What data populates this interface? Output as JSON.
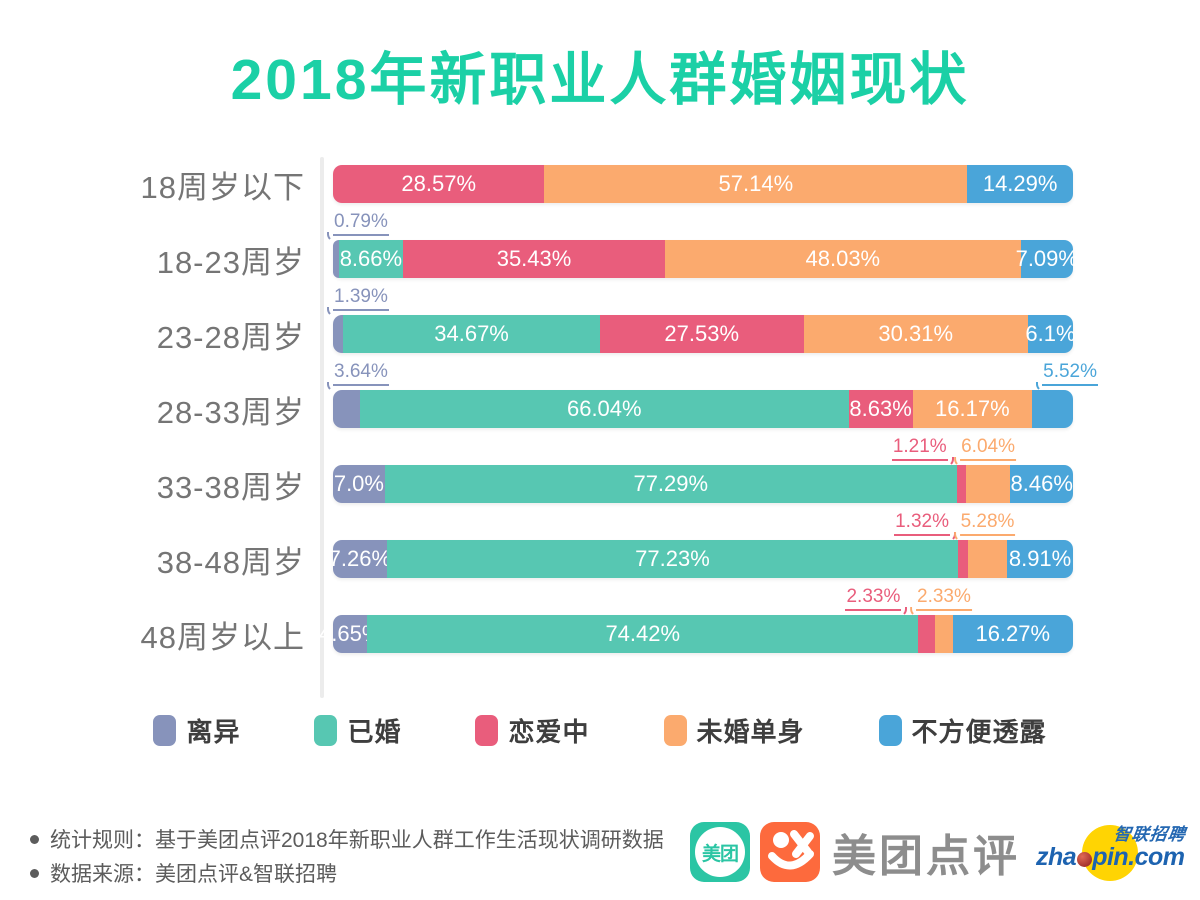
{
  "title": "2018年新职业人群婚姻现状",
  "chart_data": {
    "type": "bar",
    "stacked": true,
    "horizontal": true,
    "unit": "%",
    "xlim": [
      0,
      100
    ],
    "grid": false,
    "legend_position": "bottom",
    "categories": [
      "18周岁以下",
      "18-23周岁",
      "23-28周岁",
      "28-33周岁",
      "33-38周岁",
      "38-48周岁",
      "48周岁以上"
    ],
    "series": [
      {
        "name": "离异",
        "color": "#8793bb",
        "values": [
          0,
          0.79,
          1.39,
          3.64,
          7.0,
          7.26,
          4.65
        ]
      },
      {
        "name": "已婚",
        "color": "#57c7b2",
        "values": [
          0,
          8.66,
          34.67,
          66.04,
          77.29,
          77.23,
          74.42
        ]
      },
      {
        "name": "恋爱中",
        "color": "#e95d7c",
        "values": [
          28.57,
          35.43,
          27.53,
          8.63,
          1.21,
          1.32,
          2.33
        ]
      },
      {
        "name": "未婚单身",
        "color": "#fbaa6e",
        "values": [
          57.14,
          48.03,
          30.31,
          16.17,
          6.04,
          5.28,
          2.33
        ]
      },
      {
        "name": "不方便透露",
        "color": "#4aa5d9",
        "values": [
          14.29,
          7.09,
          6.1,
          5.52,
          8.46,
          8.91,
          16.27
        ]
      }
    ],
    "segment_labels": [
      [
        {
          "series": "恋爱中",
          "text": "28.57%",
          "placement": "in"
        },
        {
          "series": "未婚单身",
          "text": "57.14%",
          "placement": "in"
        },
        {
          "series": "不方便透露",
          "text": "14.29%",
          "placement": "in"
        }
      ],
      [
        {
          "series": "离异",
          "text": "0.79%",
          "placement": "above",
          "anchor": "left",
          "dx": 0
        },
        {
          "series": "已婚",
          "text": "8.66%",
          "placement": "in"
        },
        {
          "series": "恋爱中",
          "text": "35.43%",
          "placement": "in"
        },
        {
          "series": "未婚单身",
          "text": "48.03%",
          "placement": "in"
        },
        {
          "series": "不方便透露",
          "text": "7.09%",
          "placement": "in"
        }
      ],
      [
        {
          "series": "离异",
          "text": "1.39%",
          "placement": "above",
          "anchor": "left",
          "dx": 0
        },
        {
          "series": "已婚",
          "text": "34.67%",
          "placement": "in"
        },
        {
          "series": "恋爱中",
          "text": "27.53%",
          "placement": "in"
        },
        {
          "series": "未婚单身",
          "text": "30.31%",
          "placement": "in"
        },
        {
          "series": "不方便透露",
          "text": "6.1%",
          "placement": "in"
        }
      ],
      [
        {
          "series": "离异",
          "text": "3.64%",
          "placement": "above",
          "anchor": "left",
          "dx": 0
        },
        {
          "series": "已婚",
          "text": "66.04%",
          "placement": "in"
        },
        {
          "series": "恋爱中",
          "text": "8.63%",
          "placement": "in"
        },
        {
          "series": "未婚单身",
          "text": "16.17%",
          "placement": "in"
        },
        {
          "series": "不方便透露",
          "text": "5.52%",
          "placement": "above",
          "anchor": "right",
          "dx": 25
        }
      ],
      [
        {
          "series": "离异",
          "text": "7.0%",
          "placement": "in"
        },
        {
          "series": "已婚",
          "text": "77.29%",
          "placement": "in"
        },
        {
          "series": "恋爱中",
          "text": "1.21%",
          "placement": "above",
          "anchor": "right",
          "dx": -18
        },
        {
          "series": "未婚单身",
          "text": "6.04%",
          "placement": "above",
          "anchor": "center",
          "dx": 0
        },
        {
          "series": "不方便透露",
          "text": "8.46%",
          "placement": "in"
        }
      ],
      [
        {
          "series": "离异",
          "text": "7.26%",
          "placement": "in"
        },
        {
          "series": "已婚",
          "text": "77.23%",
          "placement": "in"
        },
        {
          "series": "恋爱中",
          "text": "1.32%",
          "placement": "above",
          "anchor": "right",
          "dx": -18
        },
        {
          "series": "未婚单身",
          "text": "5.28%",
          "placement": "above",
          "anchor": "center",
          "dx": 0
        },
        {
          "series": "不方便透露",
          "text": "8.91%",
          "placement": "in"
        }
      ],
      [
        {
          "series": "离异",
          "text": "4.65%",
          "placement": "in"
        },
        {
          "series": "已婚",
          "text": "74.42%",
          "placement": "in"
        },
        {
          "series": "恋爱中",
          "text": "2.33%",
          "placement": "above",
          "anchor": "right",
          "dx": -34
        },
        {
          "series": "未婚单身",
          "text": "2.33%",
          "placement": "above",
          "anchor": "center",
          "dx": 0
        },
        {
          "series": "不方便透露",
          "text": "16.27%",
          "placement": "in"
        }
      ]
    ]
  },
  "footnotes": [
    "统计规则：基于美团点评2018年新职业人群工作生活现状调研数据",
    "数据来源：美团点评&智联招聘"
  ],
  "logos": {
    "meituan_badge_text": "美团",
    "brand_name": "美团点评",
    "zhaopin_cn": "智联招聘",
    "zhaopin_domain_prefix": "zha",
    "zhaopin_domain_suffix": "pin.com"
  },
  "colors": {
    "title": "#1bd0a6",
    "category_label": "#757575",
    "axis_line": "#ececec",
    "meituan_teal": "#2bc5a4",
    "dianping_orange": "#fd6a3d",
    "zhaopin_blue": "#1d63b0",
    "zhaopin_yellow": "#ffd403"
  }
}
